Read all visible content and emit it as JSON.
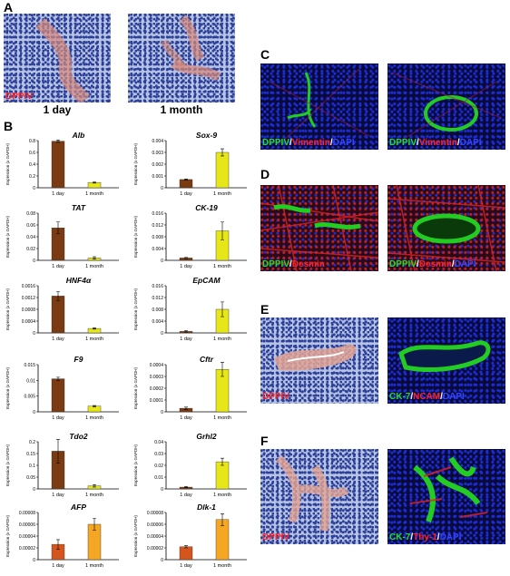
{
  "panels": {
    "A": {
      "letter": "A",
      "stain_label": "DPPIV",
      "left_time": "1 day",
      "right_time": "1 month"
    },
    "B": {
      "letter": "B"
    },
    "C": {
      "letter": "C",
      "left_label": [
        "DPPIV",
        "/",
        "Vimentin",
        "/",
        "DAPI"
      ],
      "right_label": [
        "DPPIV",
        "/",
        "Vimentin",
        "/",
        "DAPI"
      ]
    },
    "D": {
      "letter": "D",
      "left_label": [
        "DPPIV",
        "/",
        "Desmin"
      ],
      "right_label": [
        "DPPIV",
        "/",
        "Desmin",
        "/",
        "DAPI"
      ]
    },
    "E": {
      "letter": "E",
      "left_label": "DPPIV",
      "right_label": [
        "CK-7",
        "/",
        "NCAM",
        "/",
        "DAPI"
      ]
    },
    "F": {
      "letter": "F",
      "left_label": "DPPIV",
      "right_label": [
        "CK-7",
        "/",
        "Thy-1",
        "/",
        "DAPI"
      ]
    }
  },
  "colors": {
    "brown": "#7a3b12",
    "yellow": "#e6e619",
    "orange_dark": "#d4561c",
    "orange_light": "#f5a623",
    "green": "#22dd22",
    "red": "#ff2222",
    "blue": "#3344ff"
  },
  "chart_data": [
    {
      "type": "bar",
      "title": "Alb",
      "ylabel": "Expression (x GAPDH)",
      "categories": [
        "1 day",
        "1 month"
      ],
      "values": [
        0.79,
        0.09
      ],
      "errors": [
        0.02,
        0.01
      ],
      "ylim": [
        0,
        0.8
      ],
      "yticks": [
        "0",
        "0.2",
        "0.4",
        "0.6",
        "0.8"
      ],
      "colors": [
        "#7a3b12",
        "#e6e619"
      ]
    },
    {
      "type": "bar",
      "title": "Sox-9",
      "ylabel": "Expression (x GAPDH)",
      "categories": [
        "1 day",
        "1 month"
      ],
      "values": [
        0.0007,
        0.003
      ],
      "errors": [
        5e-05,
        0.0003
      ],
      "ylim": [
        0,
        0.004
      ],
      "yticks": [
        "0",
        "0.001",
        "0.002",
        "0.003",
        "0.004"
      ],
      "colors": [
        "#7a3b12",
        "#e6e619"
      ]
    },
    {
      "type": "bar",
      "title": "TAT",
      "ylabel": "Expression (x GAPDH)",
      "categories": [
        "1 day",
        "1 month"
      ],
      "values": [
        0.055,
        0.004
      ],
      "errors": [
        0.01,
        0.002
      ],
      "ylim": [
        0,
        0.08
      ],
      "yticks": [
        "0",
        "0.02",
        "0.04",
        "0.06",
        "0.08"
      ],
      "colors": [
        "#7a3b12",
        "#e6e619"
      ]
    },
    {
      "type": "bar",
      "title": "CK-19",
      "ylabel": "Expression (x GAPDH)",
      "categories": [
        "1 day",
        "1 month"
      ],
      "values": [
        0.0008,
        0.01
      ],
      "errors": [
        0.0002,
        0.003
      ],
      "ylim": [
        0,
        0.016
      ],
      "yticks": [
        "0",
        "0.004",
        "0.008",
        "0.012",
        "0.016"
      ],
      "colors": [
        "#7a3b12",
        "#e6e619"
      ]
    },
    {
      "type": "bar",
      "title": "HNF4α",
      "ylabel": "Expression (x GAPDH)",
      "categories": [
        "1 day",
        "1 month"
      ],
      "values": [
        0.00125,
        0.00015
      ],
      "errors": [
        0.00015,
        2e-05
      ],
      "ylim": [
        0,
        0.0016
      ],
      "yticks": [
        "0",
        "0.0004",
        "0.0008",
        "0.0012",
        "0.0016"
      ],
      "colors": [
        "#7a3b12",
        "#e6e619"
      ]
    },
    {
      "type": "bar",
      "title": "EpCAM",
      "ylabel": "Expression (x GAPDH)",
      "categories": [
        "1 day",
        "1 month"
      ],
      "values": [
        0.0005,
        0.008
      ],
      "errors": [
        0.0002,
        0.0025
      ],
      "ylim": [
        0,
        0.016
      ],
      "yticks": [
        "0",
        "0.004",
        "0.008",
        "0.012",
        "0.016"
      ],
      "colors": [
        "#7a3b12",
        "#e6e619"
      ]
    },
    {
      "type": "bar",
      "title": "F9",
      "ylabel": "Expression (x GAPDH)",
      "categories": [
        "1 day",
        "1 month"
      ],
      "values": [
        0.0105,
        0.0018
      ],
      "errors": [
        0.0005,
        0.0002
      ],
      "ylim": [
        0,
        0.015
      ],
      "yticks": [
        "0",
        "0.005",
        "0.01",
        "0.015"
      ],
      "colors": [
        "#7a3b12",
        "#e6e619"
      ]
    },
    {
      "type": "bar",
      "title": "Cftr",
      "ylabel": "Expression (x GAPDH)",
      "categories": [
        "1 day",
        "1 month"
      ],
      "values": [
        3e-05,
        0.00036
      ],
      "errors": [
        1e-05,
        6e-05
      ],
      "ylim": [
        0,
        0.0004
      ],
      "yticks": [
        "0",
        "0.0001",
        "0.0002",
        "0.0003",
        "0.0004"
      ],
      "colors": [
        "#7a3b12",
        "#e6e619"
      ]
    },
    {
      "type": "bar",
      "title": "Tdo2",
      "ylabel": "Expression (x GAPDH)",
      "categories": [
        "1 day",
        "1 month"
      ],
      "values": [
        0.16,
        0.013
      ],
      "errors": [
        0.05,
        0.005
      ],
      "ylim": [
        0,
        0.2
      ],
      "yticks": [
        "0",
        "0.05",
        "0.1",
        "0.15",
        "0.2"
      ],
      "colors": [
        "#7a3b12",
        "#e6e619"
      ]
    },
    {
      "type": "bar",
      "title": "Grhl2",
      "ylabel": "Expression (x GAPDH)",
      "categories": [
        "1 day",
        "1 month"
      ],
      "values": [
        0.0015,
        0.023
      ],
      "errors": [
        0.0005,
        0.003
      ],
      "ylim": [
        0,
        0.04
      ],
      "yticks": [
        "0",
        "0.01",
        "0.02",
        "0.03",
        "0.04"
      ],
      "colors": [
        "#7a3b12",
        "#e6e619"
      ]
    },
    {
      "type": "bar",
      "title": "AFP",
      "ylabel": "Expression (x GAPDH)",
      "categories": [
        "1 day",
        "1 month"
      ],
      "values": [
        2.6e-05,
        6e-05
      ],
      "errors": [
        8e-06,
        1e-05
      ],
      "ylim": [
        0,
        8e-05
      ],
      "yticks": [
        "0",
        "0.00002",
        "0.00004",
        "0.00006",
        "0.00008"
      ],
      "colors": [
        "#d4561c",
        "#f5a623"
      ]
    },
    {
      "type": "bar",
      "title": "Dlk-1",
      "ylabel": "Expression (x GAPDH)",
      "categories": [
        "1 day",
        "1 month"
      ],
      "values": [
        2.2e-05,
        6.8e-05
      ],
      "errors": [
        2e-06,
        1e-05
      ],
      "ylim": [
        0,
        8e-05
      ],
      "yticks": [
        "0",
        "0.00002",
        "0.00004",
        "0.00006",
        "0.00008"
      ],
      "colors": [
        "#d4561c",
        "#f5a623"
      ]
    }
  ]
}
